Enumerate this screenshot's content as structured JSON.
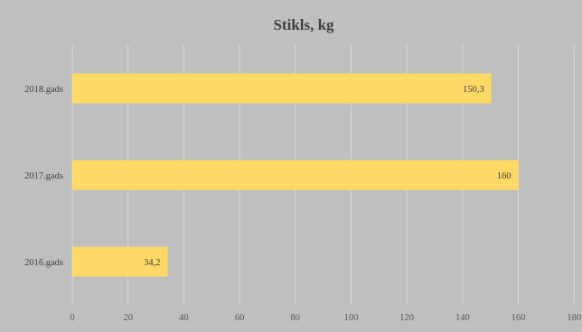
{
  "chart_data": {
    "type": "bar",
    "orientation": "horizontal",
    "title": "Stikls, kg",
    "categories": [
      "2016.gads",
      "2017.gads",
      "2018.gads"
    ],
    "values": [
      34.2,
      160,
      150.3
    ],
    "data_labels": [
      "34,2",
      "160",
      "150,3"
    ],
    "x_ticks": [
      "0",
      "20",
      "40",
      "60",
      "80",
      "100",
      "120",
      "140",
      "160",
      "180"
    ],
    "xlim": [
      0,
      180
    ],
    "grid": "vertical",
    "legend": "none",
    "colors": {
      "bar": "#ffd966",
      "background": "#bfbfbf",
      "gridline": "#d9d9d9"
    }
  }
}
